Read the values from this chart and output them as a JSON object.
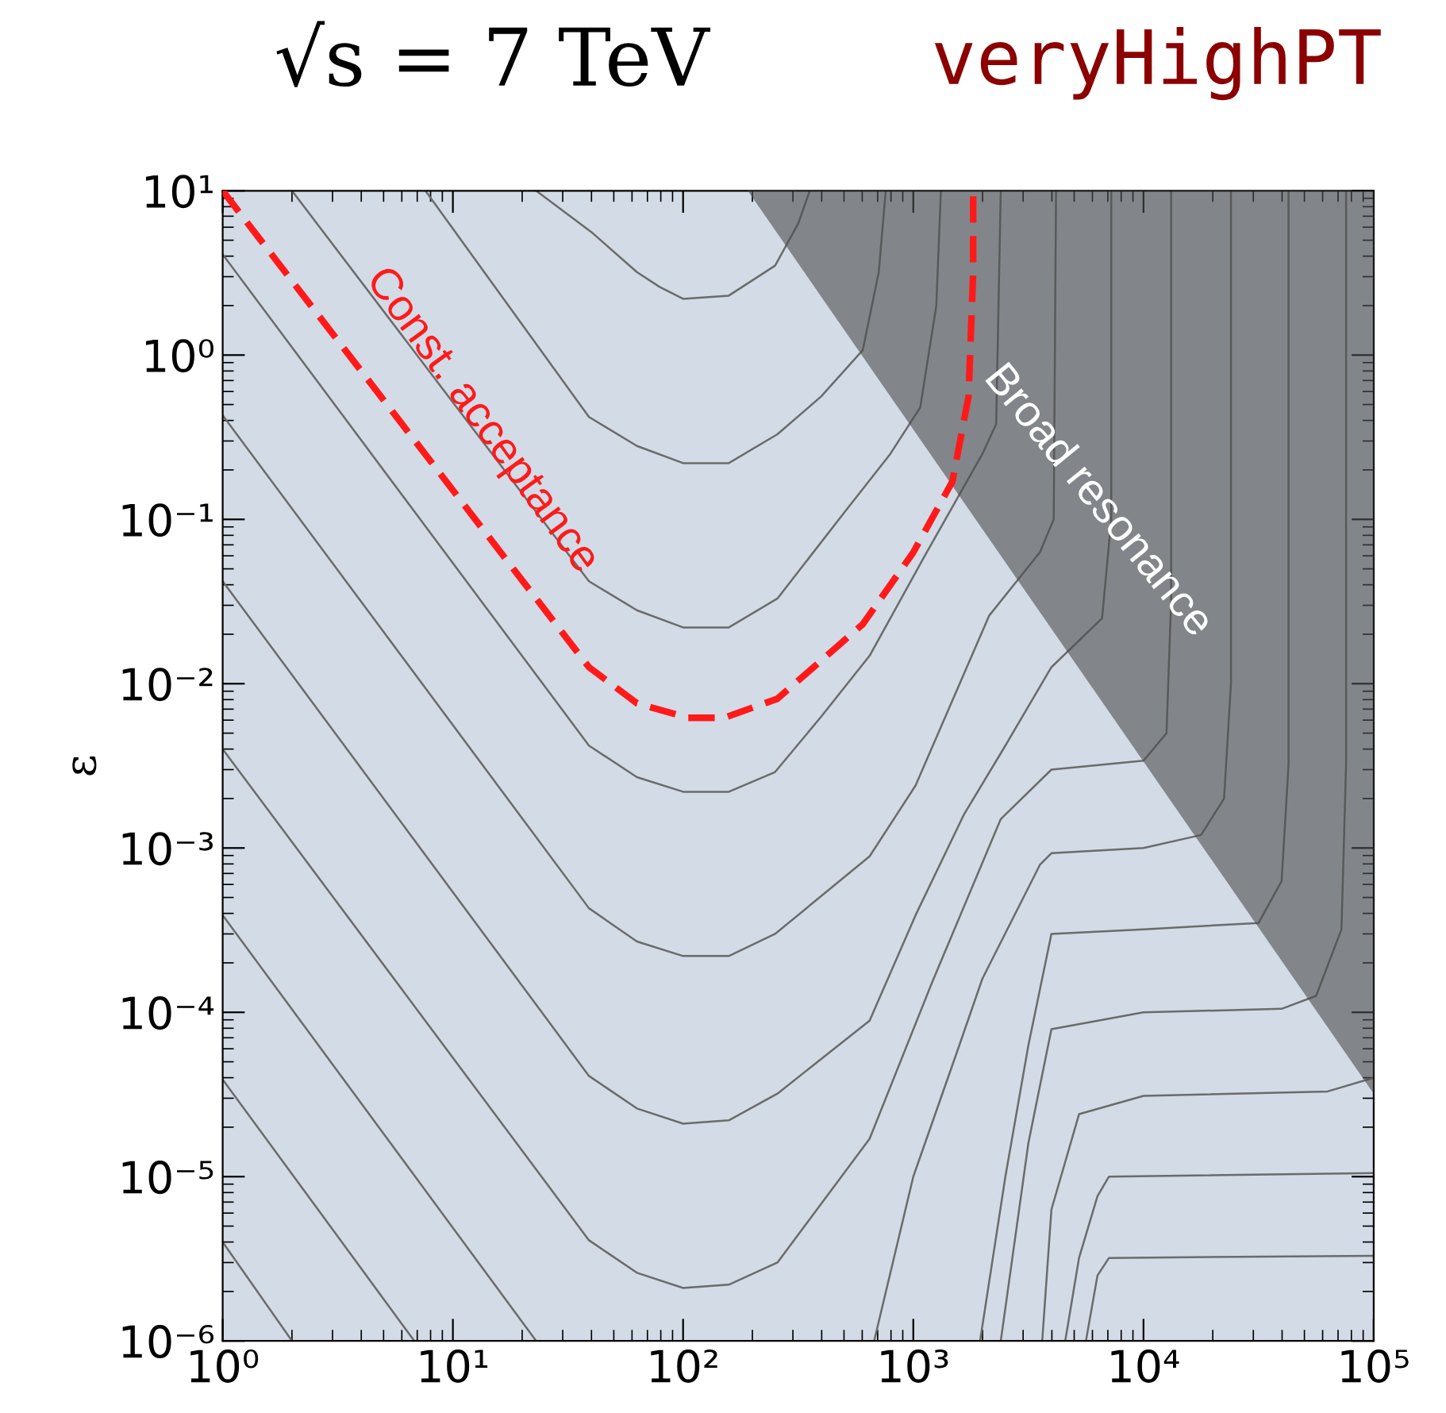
{
  "chart_data": {
    "type": "line",
    "title": "√s = 7 TeV",
    "subtitle": "veryHighPT",
    "ylabel": "ε",
    "log": "xy",
    "xlim": [
      1,
      100000
    ],
    "ylim": [
      1e-06,
      10
    ],
    "xticks": [
      {
        "value": 1,
        "label": "10⁰"
      },
      {
        "value": 10,
        "label": "10¹"
      },
      {
        "value": 100,
        "label": "10²"
      },
      {
        "value": 1000,
        "label": "10³"
      },
      {
        "value": 10000,
        "label": "10⁴"
      },
      {
        "value": 100000,
        "label": "10⁵"
      }
    ],
    "yticks": [
      {
        "value": 1e-06,
        "label": "10⁻⁶"
      },
      {
        "value": 1e-05,
        "label": "10⁻⁵"
      },
      {
        "value": 0.0001,
        "label": "10⁻⁴"
      },
      {
        "value": 0.001,
        "label": "10⁻³"
      },
      {
        "value": 0.01,
        "label": "10⁻²"
      },
      {
        "value": 0.1,
        "label": "10⁻¹"
      },
      {
        "value": 1,
        "label": "10⁰"
      },
      {
        "value": 10,
        "label": "10¹"
      }
    ],
    "grid": false,
    "legend": false,
    "series": [
      {
        "type": "area",
        "color": "#4d4d4d",
        "x": [
          191,
          100000
        ],
        "values": [
          10,
          3.2e-05
        ]
      },
      {
        "type": "line",
        "color": "#6b6b6b",
        "x": [
          23,
          40,
          63,
          79,
          100,
          158,
          251,
          316,
          355
        ],
        "values": [
          10,
          5.6,
          3.2,
          2.6,
          2.2,
          2.3,
          3.5,
          6.3,
          10
        ]
      },
      {
        "type": "line",
        "color": "#6b6b6b",
        "x": [
          7.6,
          39,
          63,
          100,
          158,
          257,
          398,
          603,
          708,
          759
        ],
        "values": [
          10,
          0.42,
          0.28,
          0.22,
          0.22,
          0.33,
          0.56,
          1.07,
          3.2,
          10
        ]
      },
      {
        "type": "line",
        "color": "#6b6b6b",
        "x": [
          2.0,
          39,
          63,
          100,
          158,
          257,
          501,
          794,
          1072,
          1259,
          1318
        ],
        "values": [
          10,
          0.042,
          0.028,
          0.022,
          0.022,
          0.033,
          0.11,
          0.25,
          0.48,
          2.0,
          10
        ]
      },
      {
        "type": "line",
        "color": "#6b6b6b",
        "x": [
          1,
          39,
          63,
          100,
          158,
          251,
          398,
          646,
          1122,
          1995,
          2291,
          2399
        ],
        "values": [
          4.1,
          0.0042,
          0.0027,
          0.0022,
          0.0022,
          0.0029,
          0.0063,
          0.0148,
          0.06,
          0.25,
          0.38,
          10
        ]
      },
      {
        "type": "line",
        "color": "#6b6b6b",
        "x": [
          1,
          39,
          63,
          100,
          158,
          251,
          646,
          1023,
          2138,
          3548,
          4074,
          4169
        ],
        "values": [
          0.43,
          0.00043,
          0.00027,
          0.00022,
          0.00022,
          0.0003,
          0.00089,
          0.0024,
          0.026,
          0.063,
          0.1,
          10
        ]
      },
      {
        "type": "line",
        "color": "#6b6b6b",
        "x": [
          1,
          39,
          63,
          100,
          158,
          257,
          646,
          1023,
          1660,
          2512,
          3981,
          6607,
          7244,
          7244
        ],
        "values": [
          0.042,
          4.1e-05,
          2.6e-05,
          2.1e-05,
          2.2e-05,
          3.2e-05,
          8.9e-05,
          0.00039,
          0.0016,
          0.0042,
          0.0126,
          0.025,
          0.1,
          10
        ]
      },
      {
        "type": "line",
        "color": "#6b6b6b",
        "x": [
          1,
          39,
          63,
          100,
          158,
          257,
          646,
          1202,
          2399,
          3981,
          10000,
          12589,
          13183,
          13183
        ],
        "values": [
          0.004,
          4.1e-06,
          2.6e-06,
          2.1e-06,
          2.2e-06,
          3e-06,
          1.7e-05,
          0.00015,
          0.0015,
          0.003,
          0.0034,
          0.005,
          0.032,
          10
        ]
      },
      {
        "type": "line",
        "color": "#6b6b6b",
        "x": [
          1,
          23
        ],
        "values": [
          0.00039,
          1e-06
        ]
      },
      {
        "type": "line",
        "color": "#6b6b6b",
        "x": [
          1,
          6.8
        ],
        "values": [
          3.9e-05,
          1e-06
        ]
      },
      {
        "type": "line",
        "color": "#6b6b6b",
        "x": [
          1,
          2.0
        ],
        "values": [
          4e-06,
          1e-06
        ]
      },
      {
        "type": "line",
        "color": "#6b6b6b",
        "x": [
          676,
          1000,
          1585,
          1995,
          3548,
          3981,
          10000,
          17783,
          22387,
          23988,
          23988
        ],
        "values": [
          1e-06,
          1e-05,
          6.3e-05,
          0.00016,
          0.00079,
          0.00093,
          0.001,
          0.0012,
          0.002,
          0.01,
          10
        ]
      },
      {
        "type": "line",
        "color": "#6b6b6b",
        "x": [
          1950,
          2512,
          3162,
          3981,
          10000,
          31623,
          39811,
          42658,
          42658
        ],
        "values": [
          1e-06,
          1e-05,
          6.3e-05,
          0.0003,
          0.00032,
          0.00035,
          0.00063,
          0.0032,
          10
        ]
      },
      {
        "type": "line",
        "color": "#6b6b6b",
        "x": [
          2399,
          3162,
          3981,
          10000,
          39811,
          56234,
          72444,
          75858,
          75858
        ],
        "values": [
          1e-06,
          1.6e-05,
          7.9e-05,
          0.0001,
          0.000105,
          0.000126,
          0.00032,
          0.0032,
          10
        ]
      },
      {
        "type": "line",
        "color": "#6b6b6b",
        "x": [
          3631,
          3981,
          5248,
          10000,
          63096,
          100000
        ],
        "values": [
          1e-06,
          6.3e-06,
          2.4e-05,
          3.1e-05,
          3.3e-05,
          4e-05
        ]
      },
      {
        "type": "line",
        "color": "#6b6b6b",
        "x": [
          4571,
          5248,
          6310,
          7079,
          100000
        ],
        "values": [
          1e-06,
          3.2e-06,
          7.6e-06,
          1e-05,
          1.05e-05
        ]
      },
      {
        "type": "line",
        "color": "#6b6b6b",
        "x": [
          5623,
          6310,
          7079,
          100000
        ],
        "values": [
          1e-06,
          2.5e-06,
          3.2e-06,
          3.3e-06
        ]
      },
      {
        "color": "#ff1a1a",
        "line_style": "dashed",
        "x": [
          1,
          39,
          63,
          105,
          151,
          257,
          603,
          1000,
          1479,
          1738,
          1820,
          1820
        ],
        "values": [
          10,
          0.0126,
          0.0076,
          0.0062,
          0.0062,
          0.0081,
          0.023,
          0.063,
          0.17,
          0.56,
          3.2,
          10
        ]
      }
    ],
    "annotations": [
      "Const. acceptance",
      "Broad resonance"
    ]
  }
}
